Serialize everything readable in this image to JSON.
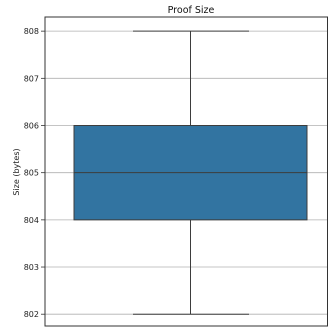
{
  "chart_data": {
    "type": "box",
    "title": "Proof Size",
    "xlabel": "",
    "ylabel": "Size (bytes)",
    "ylim": [
      801.75,
      808.3
    ],
    "yticks": [
      802,
      803,
      804,
      805,
      806,
      807,
      808
    ],
    "grid": "horizontal",
    "box": {
      "min": 802,
      "q1": 804,
      "median": 805,
      "q3": 806,
      "max": 808
    },
    "box_color": "#3274a1"
  }
}
